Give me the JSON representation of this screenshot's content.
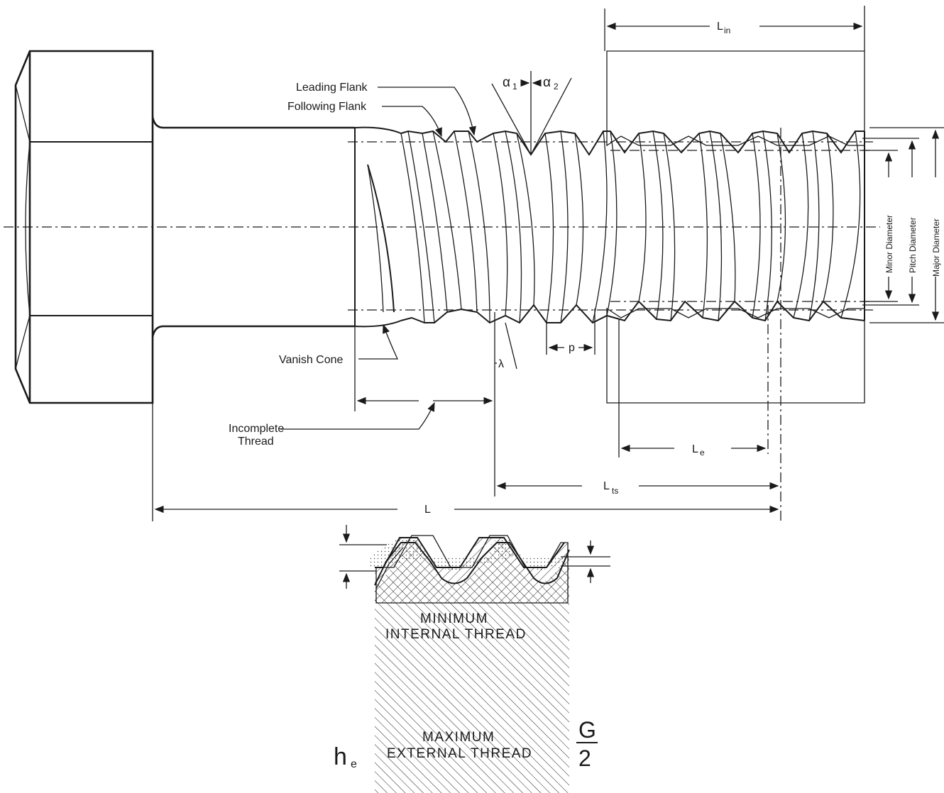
{
  "labels": {
    "leading_flank": "Leading Flank",
    "following_flank": "Following Flank",
    "alpha1": "α",
    "alpha1_sub": "1",
    "alpha2": "α",
    "alpha2_sub": "2",
    "vanish_cone": "Vanish Cone",
    "incomplete_thread_1": "Incomplete",
    "incomplete_thread_2": "Thread",
    "lambda": "λ",
    "pitch": "p",
    "l_in": "L",
    "l_in_sub": "in",
    "l_e": "L",
    "l_e_sub": "e",
    "l_ts": "L",
    "l_ts_sub": "ts",
    "l": "L",
    "minor_diameter": "Minor Diameter",
    "pitch_diameter": "Pitch Diameter",
    "major_diameter": "Major Diameter"
  },
  "detail": {
    "minimum": "MINIMUM",
    "internal_thread": "INTERNAL THREAD",
    "maximum": "MAXIMUM",
    "external_thread": "EXTERNAL THREAD",
    "he": "h",
    "he_sub": "e",
    "g_num": "G",
    "g_den": "2"
  }
}
